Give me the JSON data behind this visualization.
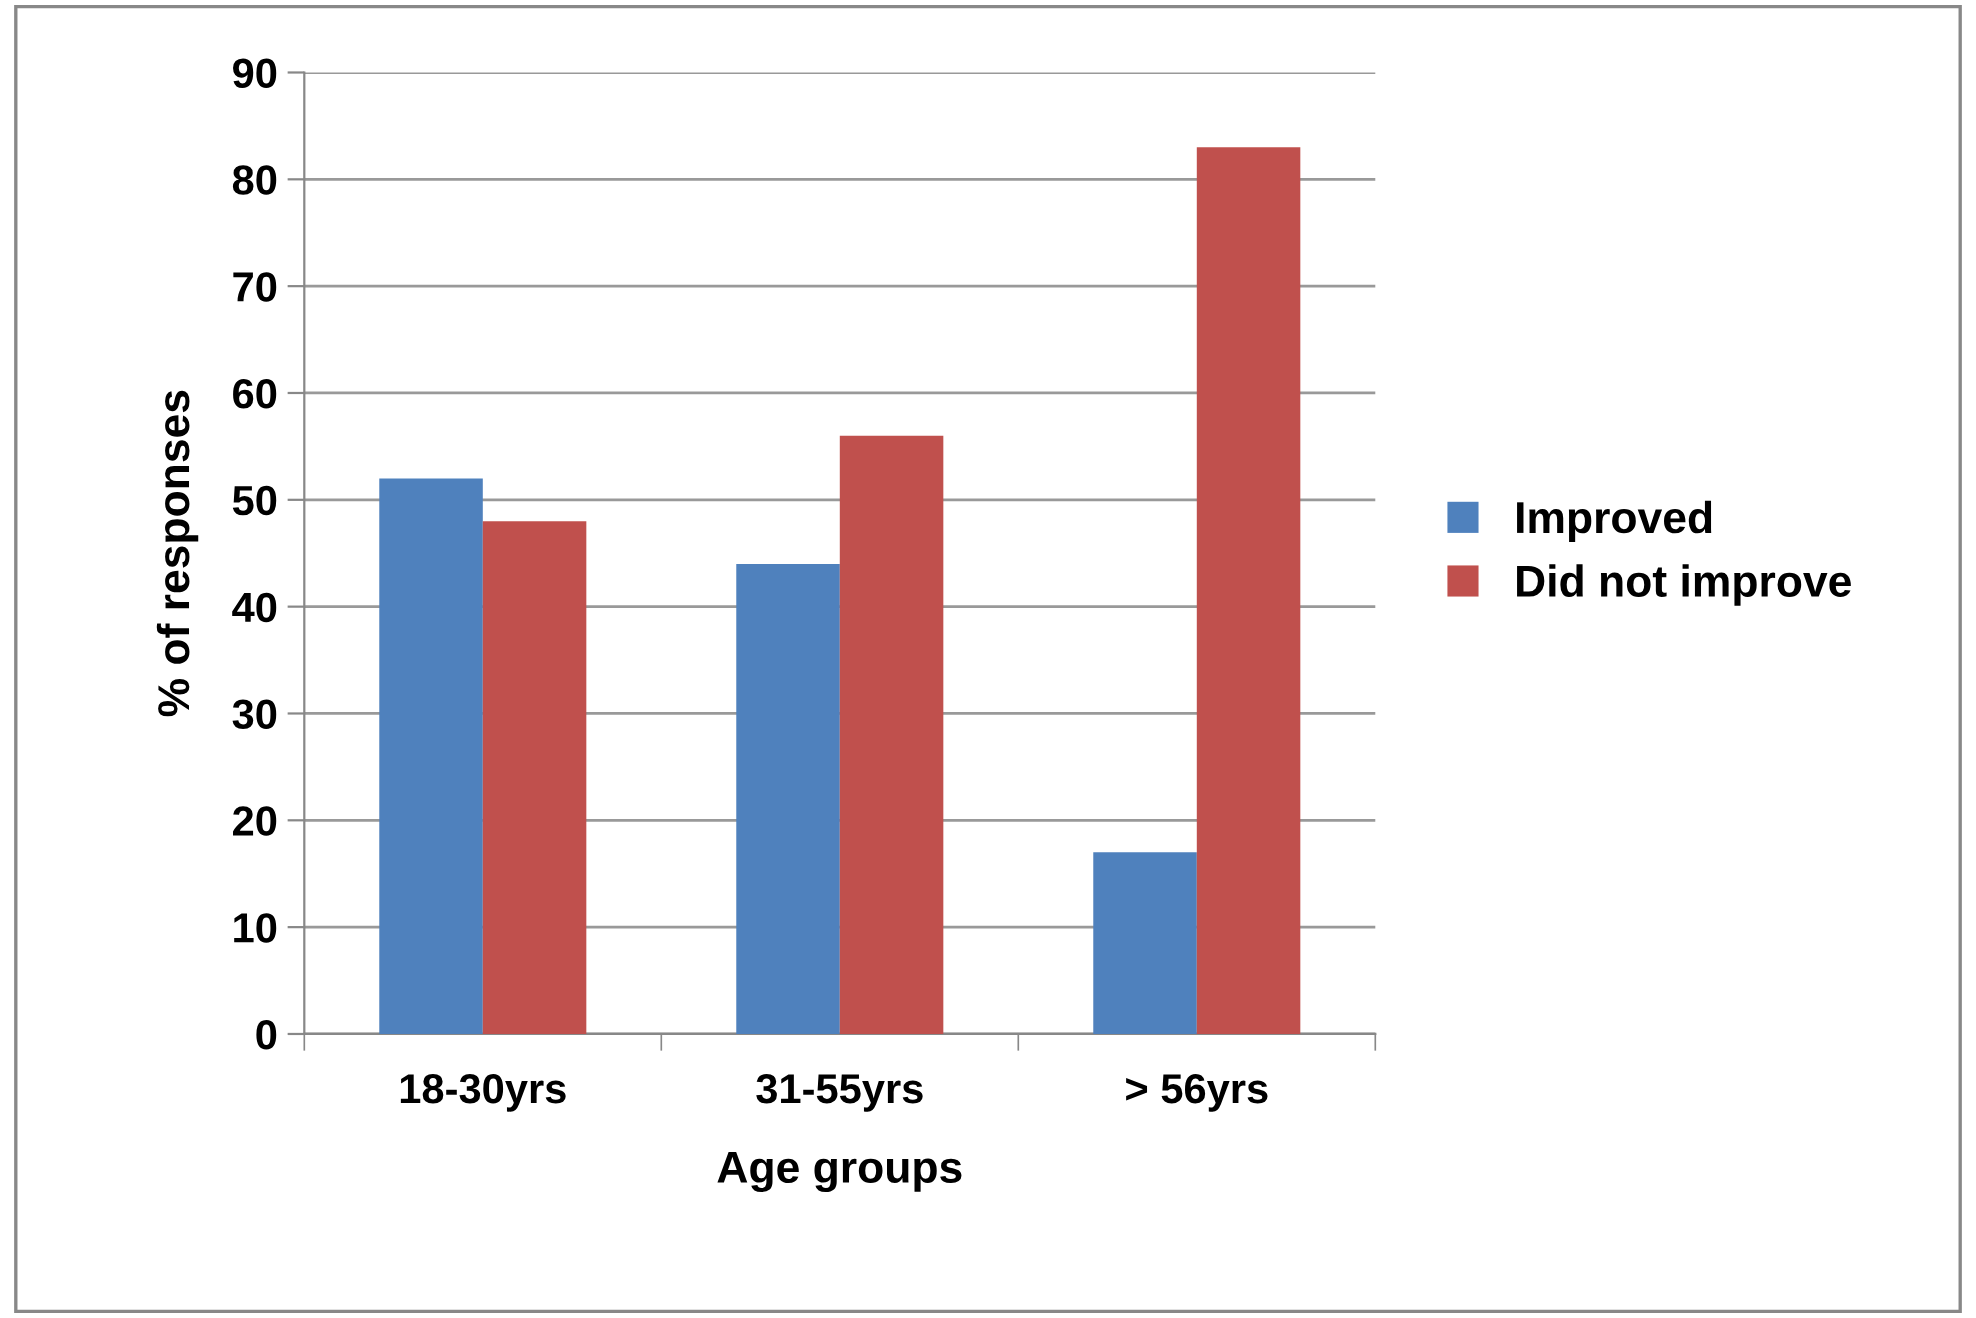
{
  "chart_data": {
    "type": "bar",
    "xlabel": "Age groups",
    "ylabel": "% of responses",
    "categories": [
      "18-30yrs",
      "31-55yrs",
      "> 56yrs"
    ],
    "series": [
      {
        "name": "Improved",
        "color": "#4f81bd",
        "values": [
          52,
          44,
          17
        ]
      },
      {
        "name": "Did not improve",
        "color": "#c0504d",
        "values": [
          48,
          56,
          83
        ]
      }
    ],
    "ylim": [
      0,
      90
    ],
    "yticks": [
      0,
      10,
      20,
      30,
      40,
      50,
      60,
      70,
      80,
      90
    ],
    "grid": "y",
    "legend": "right"
  }
}
